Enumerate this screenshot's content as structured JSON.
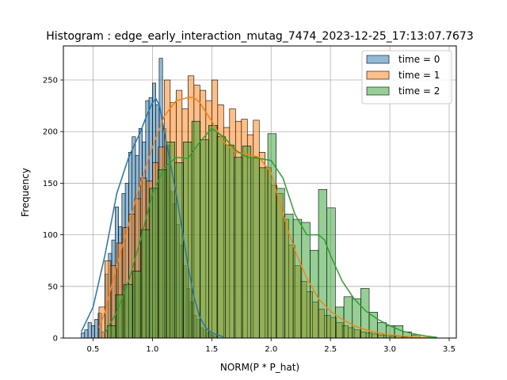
{
  "chart_data": {
    "type": "histogram",
    "title": "Histogram : edge_early_interaction_mutag_7474_2023-12-25_17:13:07.7673",
    "xlabel": "NORM(P * P_hat)",
    "ylabel": "Frequency",
    "xlim": [
      0.25,
      3.56
    ],
    "ylim": [
      0,
      283
    ],
    "xticks": [
      "0.5",
      "1.0",
      "1.5",
      "2.0",
      "2.5",
      "3.0",
      "3.5"
    ],
    "yticks": [
      "0",
      "50",
      "100",
      "150",
      "200",
      "250"
    ],
    "grid": true,
    "legend_position": "top-right",
    "series": [
      {
        "name": "time = 0",
        "color": "#1f77b4",
        "bin_width": 0.0286,
        "bins": [
          {
            "x0": 0.4,
            "count": 5
          },
          {
            "x0": 0.429,
            "count": 8
          },
          {
            "x0": 0.457,
            "count": 15
          },
          {
            "x0": 0.486,
            "count": 12
          },
          {
            "x0": 0.514,
            "count": 18
          },
          {
            "x0": 0.543,
            "count": 24
          },
          {
            "x0": 0.571,
            "count": 6
          },
          {
            "x0": 0.6,
            "count": 62
          },
          {
            "x0": 0.629,
            "count": 82
          },
          {
            "x0": 0.657,
            "count": 95
          },
          {
            "x0": 0.686,
            "count": 127
          },
          {
            "x0": 0.714,
            "count": 108
          },
          {
            "x0": 0.743,
            "count": 140
          },
          {
            "x0": 0.771,
            "count": 150
          },
          {
            "x0": 0.8,
            "count": 180
          },
          {
            "x0": 0.829,
            "count": 195
          },
          {
            "x0": 0.857,
            "count": 177
          },
          {
            "x0": 0.886,
            "count": 203
          },
          {
            "x0": 0.914,
            "count": 190
          },
          {
            "x0": 0.943,
            "count": 230
          },
          {
            "x0": 0.971,
            "count": 233
          },
          {
            "x0": 1.0,
            "count": 247
          },
          {
            "x0": 1.029,
            "count": 226
          },
          {
            "x0": 1.057,
            "count": 271
          },
          {
            "x0": 1.086,
            "count": 203
          },
          {
            "x0": 1.114,
            "count": 187
          },
          {
            "x0": 1.143,
            "count": 142
          },
          {
            "x0": 1.171,
            "count": 130
          },
          {
            "x0": 1.2,
            "count": 110
          },
          {
            "x0": 1.229,
            "count": 90
          },
          {
            "x0": 1.257,
            "count": 70
          },
          {
            "x0": 1.286,
            "count": 48
          },
          {
            "x0": 1.314,
            "count": 35
          },
          {
            "x0": 1.343,
            "count": 22
          },
          {
            "x0": 1.371,
            "count": 18
          },
          {
            "x0": 1.4,
            "count": 10
          },
          {
            "x0": 1.429,
            "count": 8
          },
          {
            "x0": 1.457,
            "count": 5
          },
          {
            "x0": 1.486,
            "count": 3
          },
          {
            "x0": 1.514,
            "count": 2
          }
        ],
        "kde": [
          [
            0.4,
            6
          ],
          [
            0.5,
            30
          ],
          [
            0.6,
            80
          ],
          [
            0.7,
            140
          ],
          [
            0.8,
            175
          ],
          [
            0.9,
            200
          ],
          [
            0.95,
            215
          ],
          [
            1.0,
            228
          ],
          [
            1.03,
            232
          ],
          [
            1.06,
            225
          ],
          [
            1.1,
            200
          ],
          [
            1.15,
            170
          ],
          [
            1.2,
            140
          ],
          [
            1.25,
            105
          ],
          [
            1.3,
            70
          ],
          [
            1.35,
            40
          ],
          [
            1.4,
            20
          ],
          [
            1.45,
            10
          ],
          [
            1.5,
            5
          ],
          [
            1.6,
            1
          ]
        ]
      },
      {
        "name": "time = 1",
        "color": "#ff7f0e",
        "bin_width": 0.05,
        "bins": [
          {
            "x0": 0.55,
            "count": 30
          },
          {
            "x0": 0.6,
            "count": 75
          },
          {
            "x0": 0.65,
            "count": 70
          },
          {
            "x0": 0.7,
            "count": 92
          },
          {
            "x0": 0.75,
            "count": 107
          },
          {
            "x0": 0.8,
            "count": 120
          },
          {
            "x0": 0.85,
            "count": 135
          },
          {
            "x0": 0.9,
            "count": 155
          },
          {
            "x0": 0.95,
            "count": 152
          },
          {
            "x0": 1.0,
            "count": 170
          },
          {
            "x0": 1.05,
            "count": 185
          },
          {
            "x0": 1.1,
            "count": 250
          },
          {
            "x0": 1.15,
            "count": 228
          },
          {
            "x0": 1.2,
            "count": 240
          },
          {
            "x0": 1.25,
            "count": 222
          },
          {
            "x0": 1.3,
            "count": 254
          },
          {
            "x0": 1.35,
            "count": 245
          },
          {
            "x0": 1.4,
            "count": 240
          },
          {
            "x0": 1.45,
            "count": 230
          },
          {
            "x0": 1.5,
            "count": 250
          },
          {
            "x0": 1.55,
            "count": 226
          },
          {
            "x0": 1.6,
            "count": 204
          },
          {
            "x0": 1.65,
            "count": 222
          },
          {
            "x0": 1.7,
            "count": 210
          },
          {
            "x0": 1.75,
            "count": 212
          },
          {
            "x0": 1.8,
            "count": 197
          },
          {
            "x0": 1.85,
            "count": 211
          },
          {
            "x0": 1.9,
            "count": 180
          },
          {
            "x0": 1.95,
            "count": 165
          },
          {
            "x0": 2.0,
            "count": 148
          },
          {
            "x0": 2.05,
            "count": 140
          },
          {
            "x0": 2.1,
            "count": 115
          },
          {
            "x0": 2.15,
            "count": 90
          },
          {
            "x0": 2.2,
            "count": 70
          },
          {
            "x0": 2.25,
            "count": 55
          },
          {
            "x0": 2.3,
            "count": 45
          },
          {
            "x0": 2.35,
            "count": 35
          },
          {
            "x0": 2.4,
            "count": 28
          },
          {
            "x0": 2.45,
            "count": 22
          },
          {
            "x0": 2.5,
            "count": 20
          },
          {
            "x0": 2.55,
            "count": 15
          },
          {
            "x0": 2.6,
            "count": 12
          },
          {
            "x0": 2.65,
            "count": 10
          },
          {
            "x0": 2.7,
            "count": 8
          },
          {
            "x0": 2.75,
            "count": 6
          },
          {
            "x0": 2.8,
            "count": 5
          },
          {
            "x0": 2.85,
            "count": 4
          },
          {
            "x0": 2.9,
            "count": 3
          },
          {
            "x0": 2.95,
            "count": 3
          },
          {
            "x0": 3.0,
            "count": 2
          },
          {
            "x0": 3.05,
            "count": 2
          },
          {
            "x0": 3.1,
            "count": 1
          },
          {
            "x0": 3.15,
            "count": 1
          }
        ],
        "kde": [
          [
            0.55,
            10
          ],
          [
            0.6,
            25
          ],
          [
            0.7,
            70
          ],
          [
            0.8,
            110
          ],
          [
            0.9,
            150
          ],
          [
            1.0,
            185
          ],
          [
            1.1,
            215
          ],
          [
            1.2,
            230
          ],
          [
            1.3,
            233
          ],
          [
            1.35,
            233
          ],
          [
            1.4,
            228
          ],
          [
            1.5,
            210
          ],
          [
            1.6,
            190
          ],
          [
            1.7,
            180
          ],
          [
            1.8,
            178
          ],
          [
            1.9,
            175
          ],
          [
            2.0,
            160
          ],
          [
            2.1,
            120
          ],
          [
            2.2,
            85
          ],
          [
            2.3,
            58
          ],
          [
            2.4,
            38
          ],
          [
            2.5,
            26
          ],
          [
            2.6,
            18
          ],
          [
            2.7,
            12
          ],
          [
            2.8,
            8
          ],
          [
            2.9,
            5
          ],
          [
            3.0,
            3
          ],
          [
            3.1,
            2
          ],
          [
            3.2,
            1
          ],
          [
            3.3,
            0.5
          ],
          [
            3.4,
            0.2
          ]
        ]
      },
      {
        "name": "time = 2",
        "color": "#2ca02c",
        "bin_width": 0.0712,
        "bins": [
          {
            "x0": 0.62,
            "count": 12
          },
          {
            "x0": 0.691,
            "count": 42
          },
          {
            "x0": 0.762,
            "count": 52
          },
          {
            "x0": 0.834,
            "count": 65
          },
          {
            "x0": 0.905,
            "count": 105
          },
          {
            "x0": 0.976,
            "count": 145
          },
          {
            "x0": 1.047,
            "count": 163
          },
          {
            "x0": 1.118,
            "count": 190
          },
          {
            "x0": 1.189,
            "count": 170
          },
          {
            "x0": 1.261,
            "count": 190
          },
          {
            "x0": 1.332,
            "count": 210
          },
          {
            "x0": 1.403,
            "count": 192
          },
          {
            "x0": 1.474,
            "count": 206
          },
          {
            "x0": 1.545,
            "count": 195
          },
          {
            "x0": 1.616,
            "count": 187
          },
          {
            "x0": 1.688,
            "count": 175
          },
          {
            "x0": 1.759,
            "count": 186
          },
          {
            "x0": 1.83,
            "count": 175
          },
          {
            "x0": 1.901,
            "count": 165
          },
          {
            "x0": 1.972,
            "count": 198
          },
          {
            "x0": 2.043,
            "count": 145
          },
          {
            "x0": 2.115,
            "count": 120
          },
          {
            "x0": 2.186,
            "count": 115
          },
          {
            "x0": 2.257,
            "count": 112
          },
          {
            "x0": 2.328,
            "count": 85
          },
          {
            "x0": 2.399,
            "count": 144
          },
          {
            "x0": 2.47,
            "count": 126
          },
          {
            "x0": 2.541,
            "count": 30
          },
          {
            "x0": 2.613,
            "count": 40
          },
          {
            "x0": 2.684,
            "count": 38
          },
          {
            "x0": 2.755,
            "count": 48
          },
          {
            "x0": 2.826,
            "count": 25
          },
          {
            "x0": 2.897,
            "count": 15
          },
          {
            "x0": 2.968,
            "count": 12
          },
          {
            "x0": 3.04,
            "count": 12
          },
          {
            "x0": 3.111,
            "count": 6
          },
          {
            "x0": 3.182,
            "count": 3
          }
        ],
        "kde": [
          [
            0.6,
            5
          ],
          [
            0.7,
            25
          ],
          [
            0.8,
            55
          ],
          [
            0.9,
            95
          ],
          [
            1.0,
            140
          ],
          [
            1.1,
            165
          ],
          [
            1.2,
            175
          ],
          [
            1.3,
            174
          ],
          [
            1.4,
            190
          ],
          [
            1.5,
            203
          ],
          [
            1.6,
            195
          ],
          [
            1.7,
            182
          ],
          [
            1.8,
            175
          ],
          [
            1.9,
            174
          ],
          [
            2.0,
            172
          ],
          [
            2.1,
            155
          ],
          [
            2.2,
            120
          ],
          [
            2.3,
            100
          ],
          [
            2.4,
            100
          ],
          [
            2.45,
            95
          ],
          [
            2.5,
            80
          ],
          [
            2.6,
            55
          ],
          [
            2.7,
            38
          ],
          [
            2.8,
            26
          ],
          [
            2.9,
            18
          ],
          [
            3.0,
            12
          ],
          [
            3.1,
            7
          ],
          [
            3.2,
            4
          ],
          [
            3.3,
            2
          ],
          [
            3.4,
            0.5
          ]
        ]
      }
    ]
  }
}
